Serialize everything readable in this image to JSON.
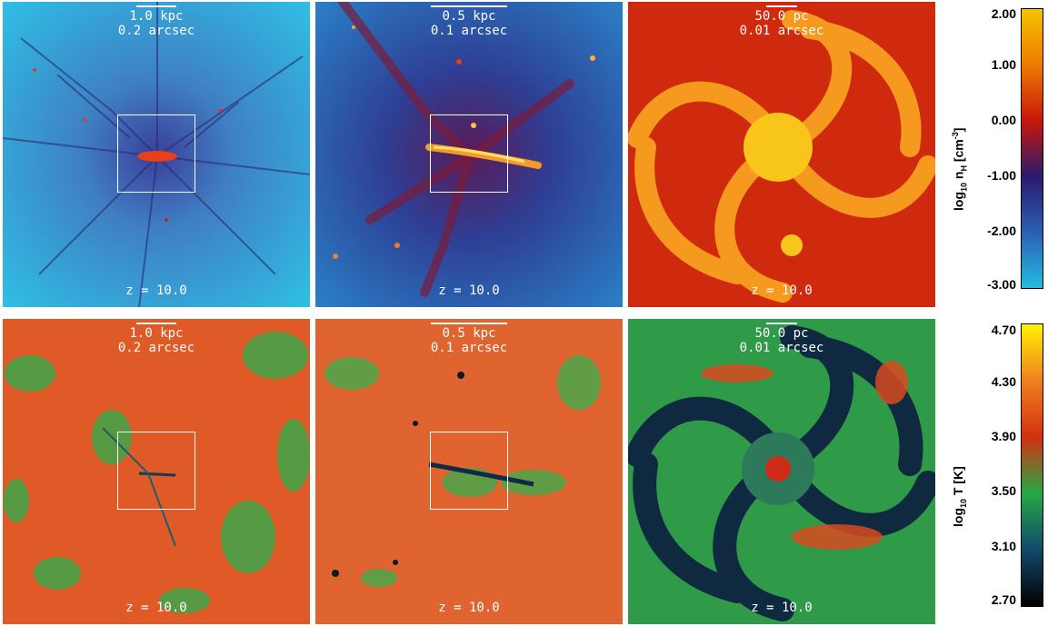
{
  "panels": {
    "r1c1": {
      "scale_len": "1.0 kpc",
      "scale_ang": "0.2 arcsec",
      "z": "z = 10.0"
    },
    "r1c2": {
      "scale_len": "0.5 kpc",
      "scale_ang": "0.1 arcsec",
      "z": "z = 10.0"
    },
    "r1c3": {
      "scale_len": "50.0 pc",
      "scale_ang": "0.01 arcsec",
      "z": "z = 10.0"
    },
    "r2c1": {
      "scale_len": "1.0 kpc",
      "scale_ang": "0.2 arcsec",
      "z": "z = 10.0"
    },
    "r2c2": {
      "scale_len": "0.5 kpc",
      "scale_ang": "0.1 arcsec",
      "z": "z = 10.0"
    },
    "r2c3": {
      "scale_len": "50.0 pc",
      "scale_ang": "0.01 arcsec",
      "z": "z = 10.0"
    }
  },
  "colorbar_density": {
    "title_pre": "log",
    "title_sub": "10",
    "title_mid": " n",
    "title_sub2": "H",
    "title_unit": " [cm",
    "title_sup": "-3",
    "title_end": "]",
    "ticks": [
      "2.00",
      "1.00",
      "0.00",
      "-1.00",
      "-2.00",
      "-3.00"
    ],
    "colors": [
      "#f5c400",
      "#ef7a00",
      "#c8160b",
      "#2a1a6e",
      "#2b5fb2",
      "#22bde0"
    ]
  },
  "colorbar_temperature": {
    "title_pre": "log",
    "title_sub": "10",
    "title_mid": " T [K]",
    "ticks": [
      "4.70",
      "4.30",
      "3.90",
      "3.50",
      "3.10",
      "2.70"
    ],
    "colors": [
      "#fff200",
      "#f08020",
      "#d43010",
      "#25a845",
      "#124a6a",
      "#000000"
    ]
  }
}
